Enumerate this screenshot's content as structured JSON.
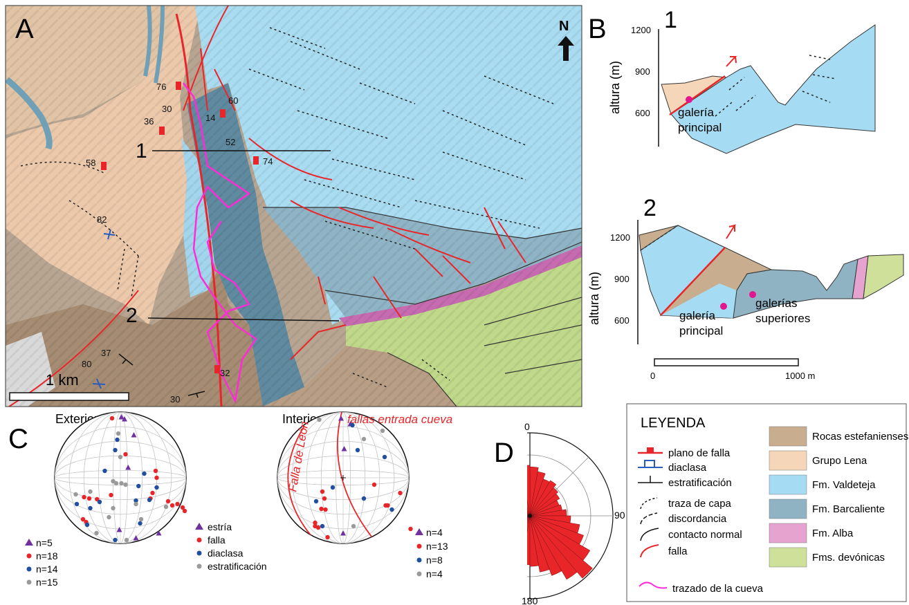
{
  "panel_a": {
    "letter": "A",
    "north": "N",
    "scale_label": "1 km",
    "section_labels": [
      "1",
      "2"
    ],
    "fault_dips": [
      "76",
      "30",
      "36",
      "14",
      "60",
      "52",
      "58",
      "74",
      "32"
    ],
    "joint_dips": [
      "82",
      "80"
    ],
    "bedding_dips": [
      "37",
      "30"
    ]
  },
  "panel_b": {
    "letter": "B",
    "section1": {
      "number": "1",
      "ylabel": "altura (m)",
      "ticks": [
        "1200",
        "900",
        "600"
      ],
      "gallery": [
        "galería",
        "principal"
      ]
    },
    "section2": {
      "number": "2",
      "ylabel": "altura (m)",
      "ticks": [
        "1200",
        "900",
        "600"
      ],
      "gallery_main": [
        "galería",
        "principal"
      ],
      "gallery_upper": [
        "galerías",
        "superiores"
      ]
    },
    "scale": {
      "start": "0",
      "end": "1000 m"
    }
  },
  "panel_c": {
    "letter": "C",
    "exterior": {
      "title": "Exterior",
      "counts": [
        "n=5",
        "n=18",
        "n=14",
        "n=15"
      ],
      "types": [
        "estría",
        "falla",
        "diaclasa",
        "estratificación"
      ]
    },
    "interior": {
      "title": "Interior",
      "counts": [
        "n=4",
        "n=13",
        "n=8",
        "n=4"
      ],
      "fault_labels": [
        "Falla de León",
        "fallas entrada cueva"
      ]
    },
    "colors": {
      "estria": "#7030a0",
      "falla": "#e8262a",
      "diaclasa": "#1f4fa0",
      "estratificacion": "#9a9a9a"
    }
  },
  "panel_d": {
    "letter": "D",
    "labels": [
      "0",
      "90",
      "180"
    ],
    "rose_lengths": [
      0.6,
      0.55,
      0.48,
      0.5,
      0.45,
      0.42,
      0.38,
      0.4,
      0.45,
      0.5,
      0.62,
      0.7,
      0.85,
      1.0,
      0.9,
      0.78,
      0.7,
      0.62
    ],
    "color": "#e8262a"
  },
  "legend": {
    "title": "LEYENDA",
    "lines": [
      "plano de falla",
      "diaclasa",
      "estratificación",
      "traza de capa",
      "discordancia",
      "contacto normal",
      "falla"
    ],
    "units": [
      {
        "label": "Rocas estefanienses",
        "color": "#c8ad8f"
      },
      {
        "label": "Grupo Lena",
        "color": "#f5d6b8"
      },
      {
        "label": "Fm. Valdeteja",
        "color": "#a6dcf3"
      },
      {
        "label": "Fm. Barcaliente",
        "color": "#8fb3c3"
      },
      {
        "label": "Fm. Alba",
        "color": "#e6a3cf"
      },
      {
        "label": "Fms. devónicas",
        "color": "#cfe09a"
      }
    ],
    "cave": "trazado de la cueva"
  }
}
